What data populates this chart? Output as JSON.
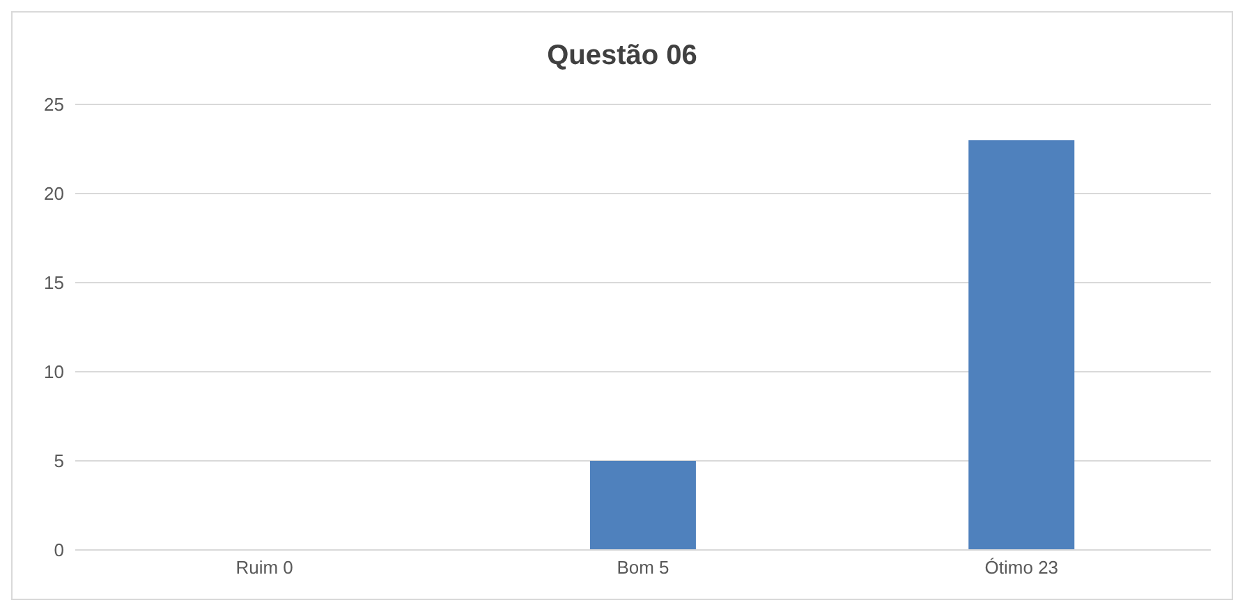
{
  "chart_data": {
    "type": "bar",
    "title": "Questão 06",
    "categories": [
      "Ruim 0",
      "Bom 5",
      "Ótimo 23"
    ],
    "values": [
      0,
      5,
      23
    ],
    "color": "#4f81bd",
    "ylim": [
      0,
      25
    ],
    "yticks": [
      0,
      5,
      10,
      15,
      20,
      25
    ],
    "grid": "y"
  }
}
